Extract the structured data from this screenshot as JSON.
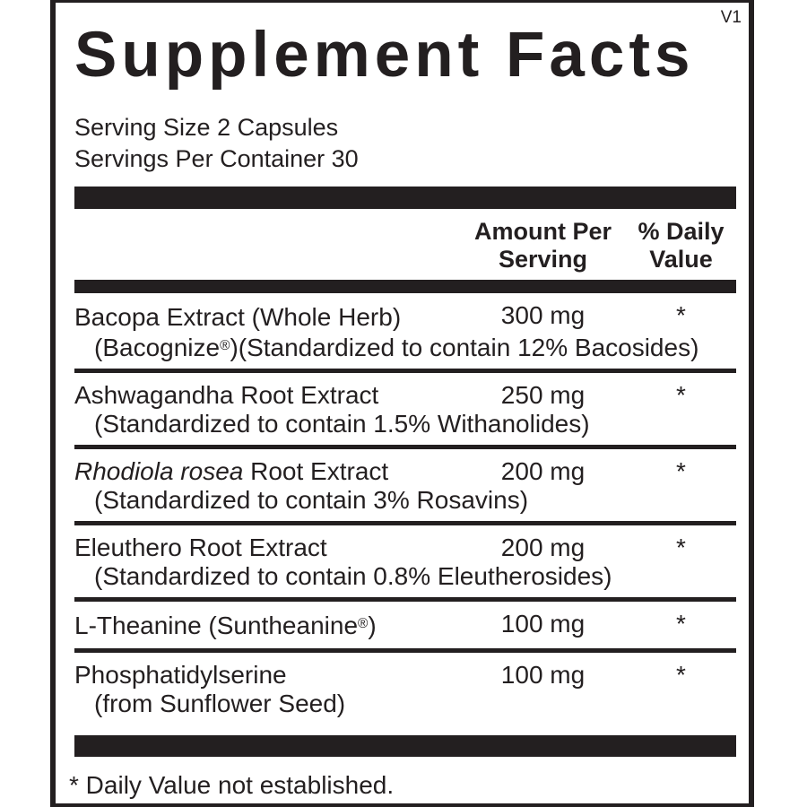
{
  "panel": {
    "version": "V1",
    "title": "Supplement Facts",
    "serving_size": "Serving Size 2 Capsules",
    "servings_per_container": "Servings Per Container 30",
    "columns": {
      "amount": "Amount Per\nServing",
      "daily_value": "% Daily\nValue"
    },
    "footnote": "* Daily Value not established.",
    "colors": {
      "ink": "#231f20",
      "background": "#ffffff"
    }
  },
  "rows": [
    {
      "name": "Bacopa Extract (Whole Herb)",
      "amount": "300 mg",
      "dv": "*",
      "sub": "(Bacognize",
      "sub_sup": "®",
      "sub_post": ")(Standardized to contain 12% Bacosides)"
    },
    {
      "name": "Ashwagandha Root Extract",
      "amount": "250 mg",
      "dv": "*",
      "sub": "(Standardized to contain 1.5% Withanolides)"
    },
    {
      "name_italic": "Rhodiola rosea",
      "name": " Root Extract",
      "amount": "200 mg",
      "dv": "*",
      "sub": "(Standardized to contain 3% Rosavins)"
    },
    {
      "name": "Eleuthero Root Extract",
      "amount": "200 mg",
      "dv": "*",
      "sub": "(Standardized to contain 0.8% Eleutherosides)"
    },
    {
      "name": "L-Theanine (Suntheanine",
      "name_sup": "®",
      "name_post": ")",
      "amount": "100 mg",
      "dv": "*"
    },
    {
      "name": "Phosphatidylserine",
      "amount": "100 mg",
      "dv": "*",
      "sub": "(from Sunflower Seed)"
    }
  ]
}
